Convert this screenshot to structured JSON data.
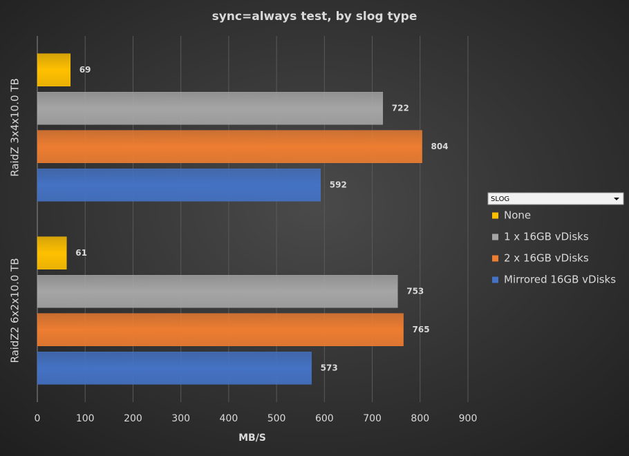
{
  "chart_data": {
    "type": "bar",
    "orientation": "horizontal",
    "title": "sync=always test, by slog type",
    "x_label": "MB/S",
    "legend_title": "SLOG",
    "categories": [
      "RaidZ 3x4x10.0 TB",
      "RaidZ2 6x2x10.0 TB"
    ],
    "series": [
      {
        "name": "None",
        "color": "#ffc000",
        "values": [
          69,
          61
        ]
      },
      {
        "name": "1 x 16GB vDisks",
        "color": "#a5a5a5",
        "values": [
          722,
          753
        ]
      },
      {
        "name": "2 x 16GB vDisks",
        "color": "#ed7d31",
        "values": [
          804,
          765
        ]
      },
      {
        "name": "Mirrored 16GB vDisks",
        "color": "#4472c4",
        "values": [
          592,
          573
        ]
      }
    ],
    "xlim": [
      0,
      900
    ],
    "xticks": [
      0,
      100,
      200,
      300,
      400,
      500,
      600,
      700,
      800,
      900
    ],
    "grid": true,
    "legend": "right"
  }
}
